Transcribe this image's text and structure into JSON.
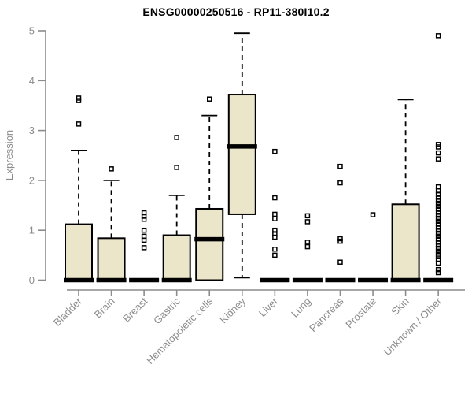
{
  "chart_data": {
    "type": "boxplot",
    "title": "ENSG00000250516 - RP11-380I10.2",
    "ylabel": "Expression",
    "xlabel": "",
    "ylim": [
      0,
      5
    ],
    "yticks": [
      0,
      1,
      2,
      3,
      4,
      5
    ],
    "grid": false,
    "legend": "none",
    "box_fill": "#ebe5c9",
    "box_stroke": "#000000",
    "axis_color": "#8c8c8c",
    "categories": [
      "Bladder",
      "Brain",
      "Breast",
      "Gastric",
      "Hematopoietic cells",
      "Kidney",
      "Liver",
      "Lung",
      "Pancreas",
      "Prostate",
      "Skin",
      "Unknown / Other"
    ],
    "series": [
      {
        "category": "Bladder",
        "q1": 0,
        "median": 0,
        "q3": 1.12,
        "whisker_low": 0,
        "whisker_high": 2.6,
        "outliers": [
          3.13,
          3.6,
          3.65
        ]
      },
      {
        "category": "Brain",
        "q1": 0,
        "median": 0,
        "q3": 0.84,
        "whisker_low": 0,
        "whisker_high": 2.0,
        "outliers": [
          2.23
        ]
      },
      {
        "category": "Breast",
        "q1": 0,
        "median": 0,
        "q3": 0,
        "whisker_low": 0,
        "whisker_high": 0,
        "outliers": [
          0.65,
          0.8,
          0.88,
          1.0,
          1.22,
          1.28,
          1.35
        ]
      },
      {
        "category": "Gastric",
        "q1": 0,
        "median": 0,
        "q3": 0.9,
        "whisker_low": 0,
        "whisker_high": 1.7,
        "outliers": [
          2.26,
          2.86
        ]
      },
      {
        "category": "Hematopoietic cells",
        "q1": 0,
        "median": 0.82,
        "q3": 1.43,
        "whisker_low": 0,
        "whisker_high": 3.3,
        "outliers": [
          3.63
        ]
      },
      {
        "category": "Kidney",
        "q1": 1.32,
        "median": 2.68,
        "q3": 3.72,
        "whisker_low": 0.05,
        "whisker_high": 4.95,
        "outliers": []
      },
      {
        "category": "Liver",
        "q1": 0,
        "median": 0,
        "q3": 0,
        "whisker_low": 0,
        "whisker_high": 0,
        "outliers": [
          0.5,
          0.62,
          0.86,
          0.93,
          1.0,
          1.23,
          1.32,
          1.65,
          2.58
        ]
      },
      {
        "category": "Lung",
        "q1": 0,
        "median": 0,
        "q3": 0,
        "whisker_low": 0,
        "whisker_high": 0,
        "outliers": [
          0.67,
          0.76,
          1.17,
          1.29
        ]
      },
      {
        "category": "Pancreas",
        "q1": 0,
        "median": 0,
        "q3": 0,
        "whisker_low": 0,
        "whisker_high": 0,
        "outliers": [
          0.36,
          0.78,
          0.83,
          1.95,
          2.28
        ]
      },
      {
        "category": "Prostate",
        "q1": 0,
        "median": 0,
        "q3": 0,
        "whisker_low": 0,
        "whisker_high": 0,
        "outliers": [
          1.31
        ]
      },
      {
        "category": "Skin",
        "q1": 0,
        "median": 0,
        "q3": 1.52,
        "whisker_low": 0,
        "whisker_high": 3.62,
        "outliers": []
      },
      {
        "category": "Unknown / Other",
        "q1": 0,
        "median": 0,
        "q3": 0,
        "whisker_low": 0,
        "whisker_high": 0,
        "outliers": [
          0.15,
          0.21,
          0.34,
          0.41,
          0.47,
          0.52,
          0.58,
          0.64,
          0.7,
          0.76,
          0.82,
          0.88,
          0.94,
          1.0,
          1.06,
          1.12,
          1.18,
          1.24,
          1.3,
          1.36,
          1.42,
          1.48,
          1.54,
          1.6,
          1.66,
          1.72,
          1.79,
          1.87,
          2.43,
          2.55,
          2.67,
          2.72,
          4.9
        ]
      }
    ]
  }
}
